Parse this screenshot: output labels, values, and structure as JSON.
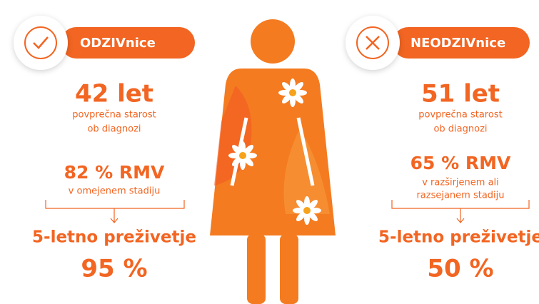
{
  "groups": [
    {
      "label": "ODZIVnice",
      "age": "42 let",
      "age_caption": [
        "povprečna starost",
        "ob diagnozi"
      ],
      "rmv": "82 % RMV",
      "rmv_caption": [
        "v omejenem stadiju"
      ],
      "survival_label": "5-letno preživetje",
      "survival": "95 %"
    },
    {
      "label": "NEODZIVnice",
      "age": "51 let",
      "age_caption": [
        "povprečna starost",
        "ob diagnozi"
      ],
      "rmv": "65 % RMV",
      "rmv_caption": [
        "v razširjenem ali",
        "razsejanem stadiju"
      ],
      "survival_label": "5-letno preživetje",
      "survival": "50 %"
    }
  ]
}
